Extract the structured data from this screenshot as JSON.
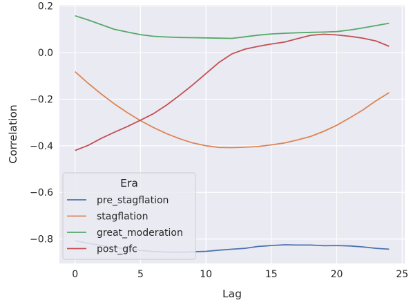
{
  "chart_data": {
    "type": "line",
    "title": "",
    "xlabel": "Lag",
    "ylabel": "Correlation",
    "xlim": [
      -1.2,
      25.2
    ],
    "ylim": [
      -0.905,
      0.205
    ],
    "xticks": [
      0,
      5,
      10,
      15,
      20,
      25
    ],
    "yticks": [
      0.2,
      0.0,
      -0.2,
      -0.4,
      -0.6,
      -0.8
    ],
    "ytick_labels": [
      "0.2",
      "0.0",
      "−0.2",
      "−0.4",
      "−0.6",
      "−0.8"
    ],
    "grid": true,
    "legend": {
      "title": "Era",
      "placement": "lower-left"
    },
    "x": [
      0,
      1,
      2,
      3,
      4,
      5,
      6,
      7,
      8,
      9,
      10,
      11,
      12,
      13,
      14,
      15,
      16,
      17,
      18,
      19,
      20,
      21,
      22,
      23,
      24
    ],
    "series": [
      {
        "name": "pre_stagflation",
        "color": "#4c72b0",
        "values": [
          -0.808,
          -0.818,
          -0.828,
          -0.836,
          -0.843,
          -0.849,
          -0.854,
          -0.856,
          -0.857,
          -0.855,
          -0.853,
          -0.848,
          -0.844,
          -0.84,
          -0.832,
          -0.828,
          -0.825,
          -0.826,
          -0.826,
          -0.829,
          -0.828,
          -0.83,
          -0.834,
          -0.84,
          -0.844
        ]
      },
      {
        "name": "stagflation",
        "color": "#dd8452",
        "values": [
          -0.082,
          -0.132,
          -0.178,
          -0.22,
          -0.258,
          -0.292,
          -0.322,
          -0.348,
          -0.37,
          -0.388,
          -0.4,
          -0.407,
          -0.408,
          -0.406,
          -0.403,
          -0.396,
          -0.388,
          -0.375,
          -0.36,
          -0.338,
          -0.312,
          -0.28,
          -0.246,
          -0.207,
          -0.172
        ]
      },
      {
        "name": "great_moderation",
        "color": "#55a868",
        "values": [
          0.158,
          0.14,
          0.12,
          0.1,
          0.088,
          0.077,
          0.07,
          0.067,
          0.065,
          0.064,
          0.063,
          0.062,
          0.061,
          0.068,
          0.075,
          0.08,
          0.083,
          0.085,
          0.087,
          0.088,
          0.09,
          0.097,
          0.106,
          0.116,
          0.126
        ]
      },
      {
        "name": "post_gfc",
        "color": "#c44e52",
        "values": [
          -0.42,
          -0.398,
          -0.368,
          -0.342,
          -0.317,
          -0.29,
          -0.262,
          -0.225,
          -0.183,
          -0.138,
          -0.09,
          -0.042,
          -0.005,
          0.015,
          0.027,
          0.037,
          0.045,
          0.06,
          0.074,
          0.079,
          0.076,
          0.07,
          0.062,
          0.05,
          0.027
        ]
      }
    ]
  }
}
